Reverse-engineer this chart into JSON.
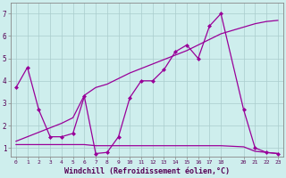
{
  "xlabel": "Windchill (Refroidissement éolien,°C)",
  "background_color": "#ceeeed",
  "line_color": "#990099",
  "grid_color": "#aacccc",
  "xlim": [
    -0.5,
    23.5
  ],
  "ylim": [
    0.6,
    7.5
  ],
  "yticks": [
    1,
    2,
    3,
    4,
    5,
    6,
    7
  ],
  "xticks": [
    0,
    1,
    2,
    3,
    4,
    5,
    6,
    7,
    8,
    9,
    10,
    11,
    12,
    13,
    14,
    15,
    16,
    17,
    18,
    20,
    21,
    22,
    23
  ],
  "series1_x": [
    0,
    1,
    2,
    3,
    4,
    5,
    6,
    7,
    8,
    9,
    10,
    11,
    12,
    13,
    14,
    15,
    16,
    17,
    18,
    20,
    21,
    22,
    23
  ],
  "series1_y": [
    3.7,
    4.6,
    2.7,
    1.5,
    1.5,
    1.65,
    3.3,
    0.75,
    0.8,
    1.5,
    3.25,
    4.0,
    4.0,
    4.5,
    5.3,
    5.6,
    5.0,
    6.45,
    7.0,
    2.7,
    1.0,
    0.8,
    0.75
  ],
  "series2_x": [
    0,
    1,
    2,
    3,
    4,
    5,
    6,
    7,
    8,
    9,
    10,
    11,
    12,
    13,
    14,
    15,
    16,
    17,
    18,
    20,
    21,
    22,
    23
  ],
  "series2_y": [
    1.15,
    1.15,
    1.15,
    1.15,
    1.15,
    1.15,
    1.15,
    1.1,
    1.1,
    1.1,
    1.1,
    1.1,
    1.1,
    1.1,
    1.1,
    1.1,
    1.1,
    1.1,
    1.1,
    1.05,
    0.85,
    0.8,
    0.75
  ],
  "series3_x": [
    0,
    1,
    2,
    3,
    4,
    5,
    6,
    7,
    8,
    9,
    10,
    11,
    12,
    13,
    14,
    15,
    16,
    17,
    18,
    20,
    21,
    22,
    23
  ],
  "series3_y": [
    1.3,
    1.5,
    1.7,
    1.9,
    2.1,
    2.35,
    3.35,
    3.7,
    3.85,
    4.1,
    4.35,
    4.55,
    4.75,
    4.95,
    5.15,
    5.35,
    5.6,
    5.85,
    6.1,
    6.4,
    6.55,
    6.65,
    6.7
  ]
}
